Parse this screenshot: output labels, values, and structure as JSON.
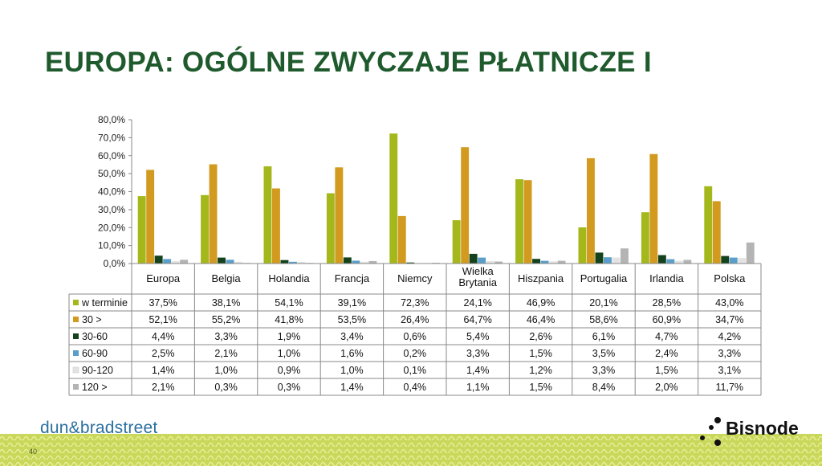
{
  "title": "EUROPA: OGÓLNE ZWYCZAJE PŁATNICZE I",
  "page_number": "40",
  "logos": {
    "left": "dun&bradstreet",
    "right": "Bisnode"
  },
  "chart_data": {
    "type": "bar",
    "categories": [
      [
        "Europa"
      ],
      [
        "Belgia"
      ],
      [
        "Holandia"
      ],
      [
        "Francja"
      ],
      [
        "Niemcy"
      ],
      [
        "Wielka",
        "Brytania"
      ],
      [
        "Hiszpania"
      ],
      [
        "Portugalia"
      ],
      [
        "Irlandia"
      ],
      [
        "Polska"
      ]
    ],
    "ylim": [
      0,
      80
    ],
    "yticks": [
      "0,0%",
      "10,0%",
      "20,0%",
      "30,0%",
      "40,0%",
      "50,0%",
      "60,0%",
      "70,0%",
      "80,0%"
    ],
    "series": [
      {
        "name": "w terminie",
        "color": "#a4b81c",
        "values": [
          37.5,
          38.1,
          54.1,
          39.1,
          72.3,
          24.1,
          46.9,
          20.1,
          28.5,
          43.0
        ],
        "labels": [
          "37,5%",
          "38,1%",
          "54,1%",
          "39,1%",
          "72,3%",
          "24,1%",
          "46,9%",
          "20,1%",
          "28,5%",
          "43,0%"
        ]
      },
      {
        "name": "30 >",
        "color": "#d39a20",
        "values": [
          52.1,
          55.2,
          41.8,
          53.5,
          26.4,
          64.7,
          46.4,
          58.6,
          60.9,
          34.7
        ],
        "labels": [
          "52,1%",
          "55,2%",
          "41,8%",
          "53,5%",
          "26,4%",
          "64,7%",
          "46,4%",
          "58,6%",
          "60,9%",
          "34,7%"
        ]
      },
      {
        "name": "30-60",
        "color": "#13421d",
        "values": [
          4.4,
          3.3,
          1.9,
          3.4,
          0.6,
          5.4,
          2.6,
          6.1,
          4.7,
          4.2
        ],
        "labels": [
          "4,4%",
          "3,3%",
          "1,9%",
          "3,4%",
          "0,6%",
          "5,4%",
          "2,6%",
          "6,1%",
          "4,7%",
          "4,2%"
        ]
      },
      {
        "name": "60-90",
        "color": "#5a9ec9",
        "values": [
          2.5,
          2.1,
          1.0,
          1.6,
          0.2,
          3.3,
          1.5,
          3.5,
          2.4,
          3.3
        ],
        "labels": [
          "2,5%",
          "2,1%",
          "1,0%",
          "1,6%",
          "0,2%",
          "3,3%",
          "1,5%",
          "3,5%",
          "2,4%",
          "3,3%"
        ]
      },
      {
        "name": "90-120",
        "color": "#e3e3e3",
        "values": [
          1.4,
          1.0,
          0.9,
          1.0,
          0.1,
          1.4,
          1.2,
          3.3,
          1.5,
          3.1
        ],
        "labels": [
          "1,4%",
          "1,0%",
          "0,9%",
          "1,0%",
          "0,1%",
          "1,4%",
          "1,2%",
          "3,3%",
          "1,5%",
          "3,1%"
        ]
      },
      {
        "name": "120 >",
        "color": "#b4b4b4",
        "values": [
          2.1,
          0.3,
          0.3,
          1.4,
          0.4,
          1.1,
          1.5,
          8.4,
          2.0,
          11.7
        ],
        "labels": [
          "2,1%",
          "0,3%",
          "0,3%",
          "1,4%",
          "0,4%",
          "1,1%",
          "1,5%",
          "8,4%",
          "2,0%",
          "11,7%"
        ]
      }
    ]
  }
}
